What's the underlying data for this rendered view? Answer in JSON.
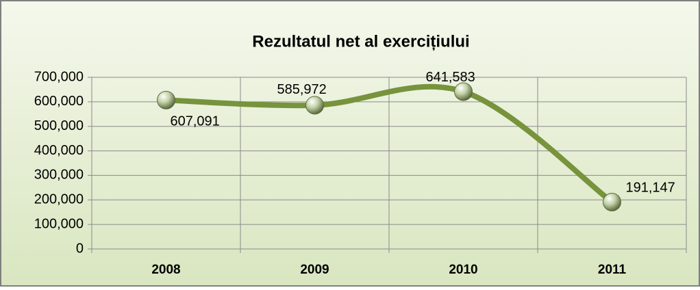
{
  "chart_data": {
    "type": "line",
    "title": "Rezultatul net al exercițiului",
    "categories": [
      "2008",
      "2009",
      "2010",
      "2011"
    ],
    "values": [
      607091,
      585972,
      641583,
      191147
    ],
    "value_labels": [
      "607,091",
      "585,972",
      "641,583",
      "191,147"
    ],
    "color": "#77933c",
    "ylim": [
      0,
      700000
    ],
    "yticks": [
      0,
      {
        "value": 100000,
        "label": "100,000"
      },
      {
        "value": 200000,
        "label": "200,000"
      },
      {
        "value": 300000,
        "label": "300,000"
      },
      {
        "value": 400000,
        "label": "400,000"
      },
      {
        "value": 500000,
        "label": "500,000"
      },
      {
        "value": 600000,
        "label": "600,000"
      },
      {
        "value": 700000,
        "label": "700,000"
      }
    ],
    "grid": true
  }
}
